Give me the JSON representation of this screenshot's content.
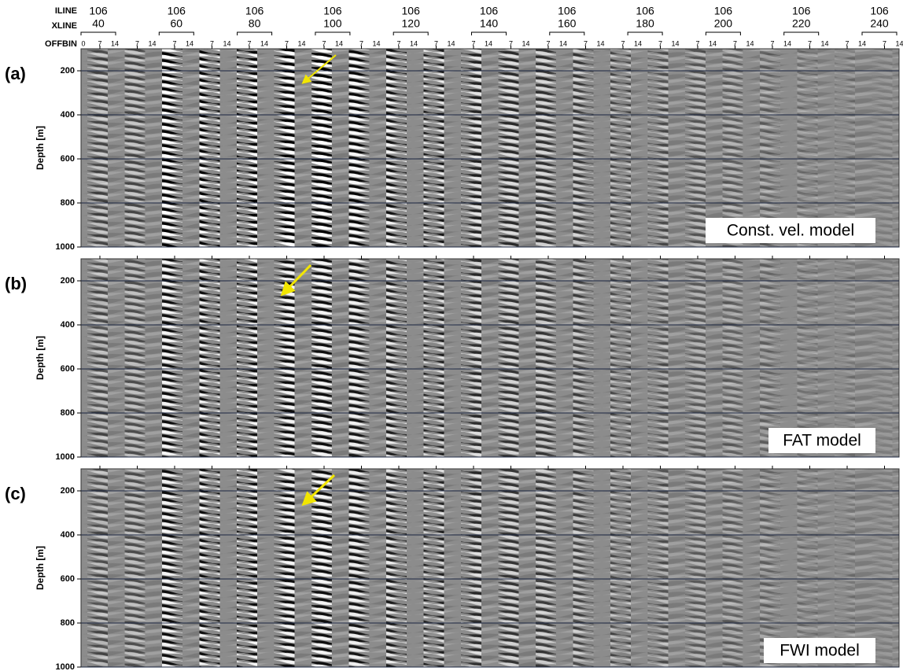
{
  "header": {
    "row_labels": [
      "ILINE",
      "XLINE",
      "OFFBIN"
    ],
    "groups": [
      {
        "iline": "106",
        "xline": "40"
      },
      {
        "iline": "106",
        "xline": "60"
      },
      {
        "iline": "106",
        "xline": "80"
      },
      {
        "iline": "106",
        "xline": "100"
      },
      {
        "iline": "106",
        "xline": "120"
      },
      {
        "iline": "106",
        "xline": "140"
      },
      {
        "iline": "106",
        "xline": "160"
      },
      {
        "iline": "106",
        "xline": "180"
      },
      {
        "iline": "106",
        "xline": "200"
      },
      {
        "iline": "106",
        "xline": "220"
      },
      {
        "iline": "106",
        "xline": "240"
      }
    ],
    "offbin_ticks": [
      "0",
      "7",
      "14"
    ]
  },
  "panels": [
    {
      "label": "(a)",
      "y_axis_label": "Depth [m]",
      "yticks": [
        "200",
        "400",
        "600",
        "800",
        "1000"
      ],
      "model": "Const. vel. model"
    },
    {
      "label": "(b)",
      "y_axis_label": "Depth [m]",
      "yticks": [
        "200",
        "400",
        "600",
        "800",
        "1000"
      ],
      "model": "FAT model"
    },
    {
      "label": "(c)",
      "y_axis_label": "Depth [m]",
      "yticks": [
        "200",
        "400",
        "600",
        "800",
        "1000"
      ],
      "model": "FWI model"
    }
  ]
}
